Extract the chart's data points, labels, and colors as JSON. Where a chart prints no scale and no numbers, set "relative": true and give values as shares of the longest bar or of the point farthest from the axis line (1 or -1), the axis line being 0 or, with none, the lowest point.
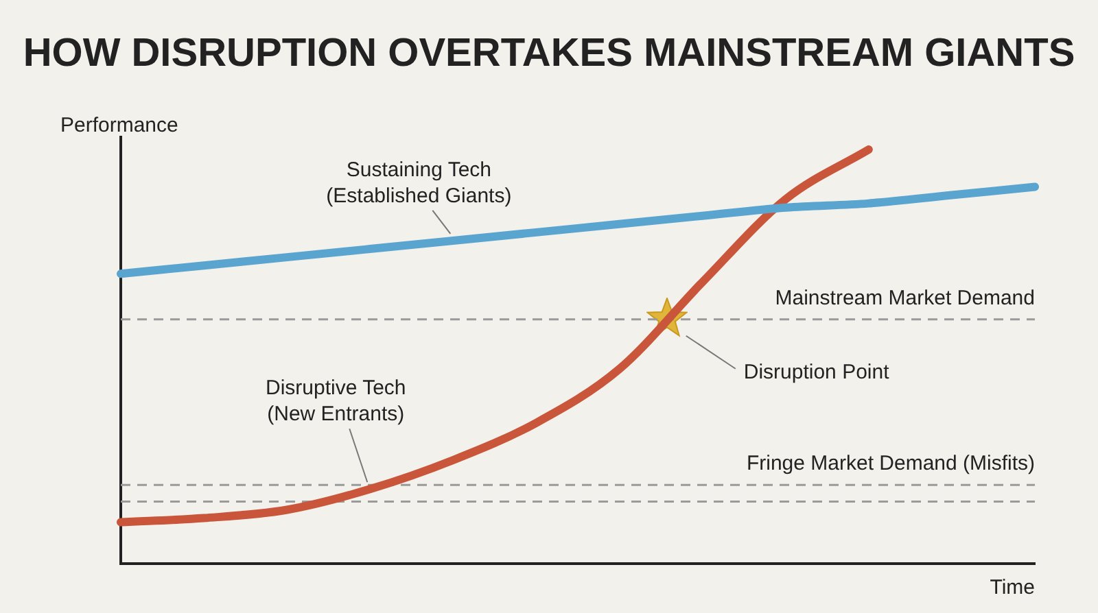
{
  "chart_data": {
    "type": "line",
    "title": "HOW DISRUPTION OVERTAKES MAINSTREAM GIANTS",
    "xlabel": "Time",
    "ylabel": "Performance",
    "relative": true,
    "legend": false,
    "grid": false,
    "marker": "none",
    "line_style": "solid",
    "categories": [
      null,
      null,
      null,
      null,
      null,
      null,
      null,
      null,
      null,
      null,
      null,
      null
    ],
    "series": [
      {
        "name": "Sustaining Tech\n(Established Giants)",
        "color": "#5aa5cf",
        "values": [
          0.7,
          0.72,
          0.74,
          0.76,
          0.78,
          0.8,
          0.82,
          0.84,
          0.86,
          0.87,
          0.89,
          0.91
        ]
      },
      {
        "name": "Disruptive Tech\n(New Entrants)",
        "color": "#c9553a",
        "values": [
          0.1,
          0.11,
          0.13,
          0.18,
          0.25,
          0.34,
          0.47,
          0.68,
          0.88,
          1.0,
          null,
          null
        ]
      }
    ],
    "ref_lines": [
      {
        "axis": "y",
        "value": 0.59,
        "label": "Mainstream Market Demand",
        "color": "#9a9a9a",
        "line_style": "dashed"
      },
      {
        "axis": "y",
        "value": 0.19,
        "label": "Fringe Market Demand (Misfits)",
        "color": "#9a9a9a",
        "line_style": "dashed"
      },
      {
        "axis": "y",
        "value": 0.15,
        "label": null,
        "color": "#9a9a9a",
        "line_style": "dashed"
      }
    ],
    "annotations": [
      {
        "text": "Disruption Point",
        "y": 0.59
      }
    ]
  }
}
